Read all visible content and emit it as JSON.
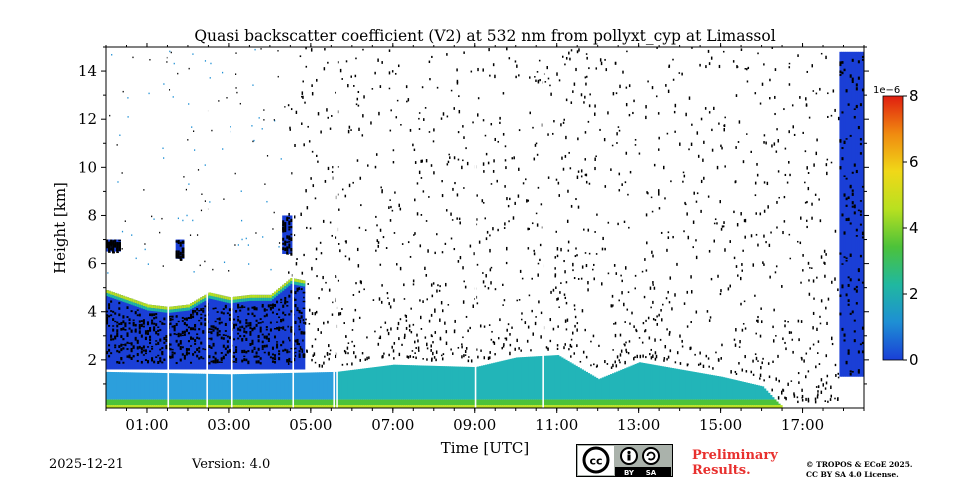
{
  "chart_data": {
    "type": "heatmap",
    "title": "Quasi backscatter coefficient (V2) at 532 nm from pollyxt_cyp at Limassol",
    "xlabel": "Time [UTC]",
    "ylabel": "Height [km]",
    "x_range_hours": [
      0,
      18.5
    ],
    "ylim": [
      0,
      15
    ],
    "x_ticks": [
      {
        "value": 1,
        "label": "01:00"
      },
      {
        "value": 3,
        "label": "03:00"
      },
      {
        "value": 5,
        "label": "05:00"
      },
      {
        "value": 7,
        "label": "07:00"
      },
      {
        "value": 9,
        "label": "09:00"
      },
      {
        "value": 11,
        "label": "11:00"
      },
      {
        "value": 13,
        "label": "13:00"
      },
      {
        "value": 15,
        "label": "15:00"
      },
      {
        "value": 17,
        "label": "17:00"
      }
    ],
    "y_ticks": [
      {
        "value": 2,
        "label": "2"
      },
      {
        "value": 4,
        "label": "4"
      },
      {
        "value": 6,
        "label": "6"
      },
      {
        "value": 8,
        "label": "8"
      },
      {
        "value": 10,
        "label": "10"
      },
      {
        "value": 12,
        "label": "12"
      },
      {
        "value": 14,
        "label": "14"
      }
    ],
    "colorbar": {
      "min": 0,
      "max": 8,
      "scale_label": "1e−6",
      "ticks": [
        {
          "value": 0,
          "label": "0"
        },
        {
          "value": 2,
          "label": "2"
        },
        {
          "value": 4,
          "label": "4"
        },
        {
          "value": 6,
          "label": "6"
        },
        {
          "value": 8,
          "label": "8"
        }
      ],
      "colors": [
        "#1a3fd6",
        "#1e8fd4",
        "#20b8a0",
        "#4cc23a",
        "#b8e020",
        "#f0d818",
        "#f08a10",
        "#e01e10"
      ]
    },
    "aerosol_layer_top_km": [
      {
        "t": 0.0,
        "h": 4.9
      },
      {
        "t": 0.5,
        "h": 4.6
      },
      {
        "t": 1.0,
        "h": 4.3
      },
      {
        "t": 1.5,
        "h": 4.2
      },
      {
        "t": 2.0,
        "h": 4.3
      },
      {
        "t": 2.5,
        "h": 4.8
      },
      {
        "t": 3.0,
        "h": 4.6
      },
      {
        "t": 3.5,
        "h": 4.7
      },
      {
        "t": 4.0,
        "h": 4.7
      },
      {
        "t": 4.5,
        "h": 5.4
      },
      {
        "t": 4.8,
        "h": 5.3
      }
    ],
    "boundary_layer_top_km": [
      {
        "t": 0.0,
        "h": 1.5
      },
      {
        "t": 3.0,
        "h": 1.4
      },
      {
        "t": 5.6,
        "h": 1.5
      },
      {
        "t": 7.0,
        "h": 1.8
      },
      {
        "t": 9.0,
        "h": 1.7
      },
      {
        "t": 10.0,
        "h": 2.1
      },
      {
        "t": 11.0,
        "h": 2.2
      },
      {
        "t": 12.0,
        "h": 1.2
      },
      {
        "t": 13.0,
        "h": 1.9
      },
      {
        "t": 14.0,
        "h": 1.6
      },
      {
        "t": 15.0,
        "h": 1.3
      },
      {
        "t": 16.0,
        "h": 0.9
      },
      {
        "t": 16.5,
        "h": 0.0
      }
    ],
    "elevated_layers": [
      {
        "t_start": 0.0,
        "t_end": 0.35,
        "h_bottom": 6.5,
        "h_top": 7.0
      },
      {
        "t_start": 1.7,
        "t_end": 1.9,
        "h_bottom": 6.2,
        "h_top": 7.0
      },
      {
        "t_start": 4.3,
        "t_end": 4.5,
        "h_bottom": 6.4,
        "h_top": 8.0
      },
      {
        "t_start": 17.9,
        "t_end": 18.5,
        "h_bottom": 1.3,
        "h_top": 14.8
      }
    ]
  },
  "footer": {
    "date": "2025-12-21",
    "version": "Version: 4.0",
    "preliminary_line1": "Preliminary",
    "preliminary_line2": "Results.",
    "copyright_line1": "© TROPOS & ECoE 2025.",
    "copyright_line2": "CC BY SA 4.0 License.",
    "license_badge_by": "BY",
    "license_badge_sa": "SA"
  }
}
